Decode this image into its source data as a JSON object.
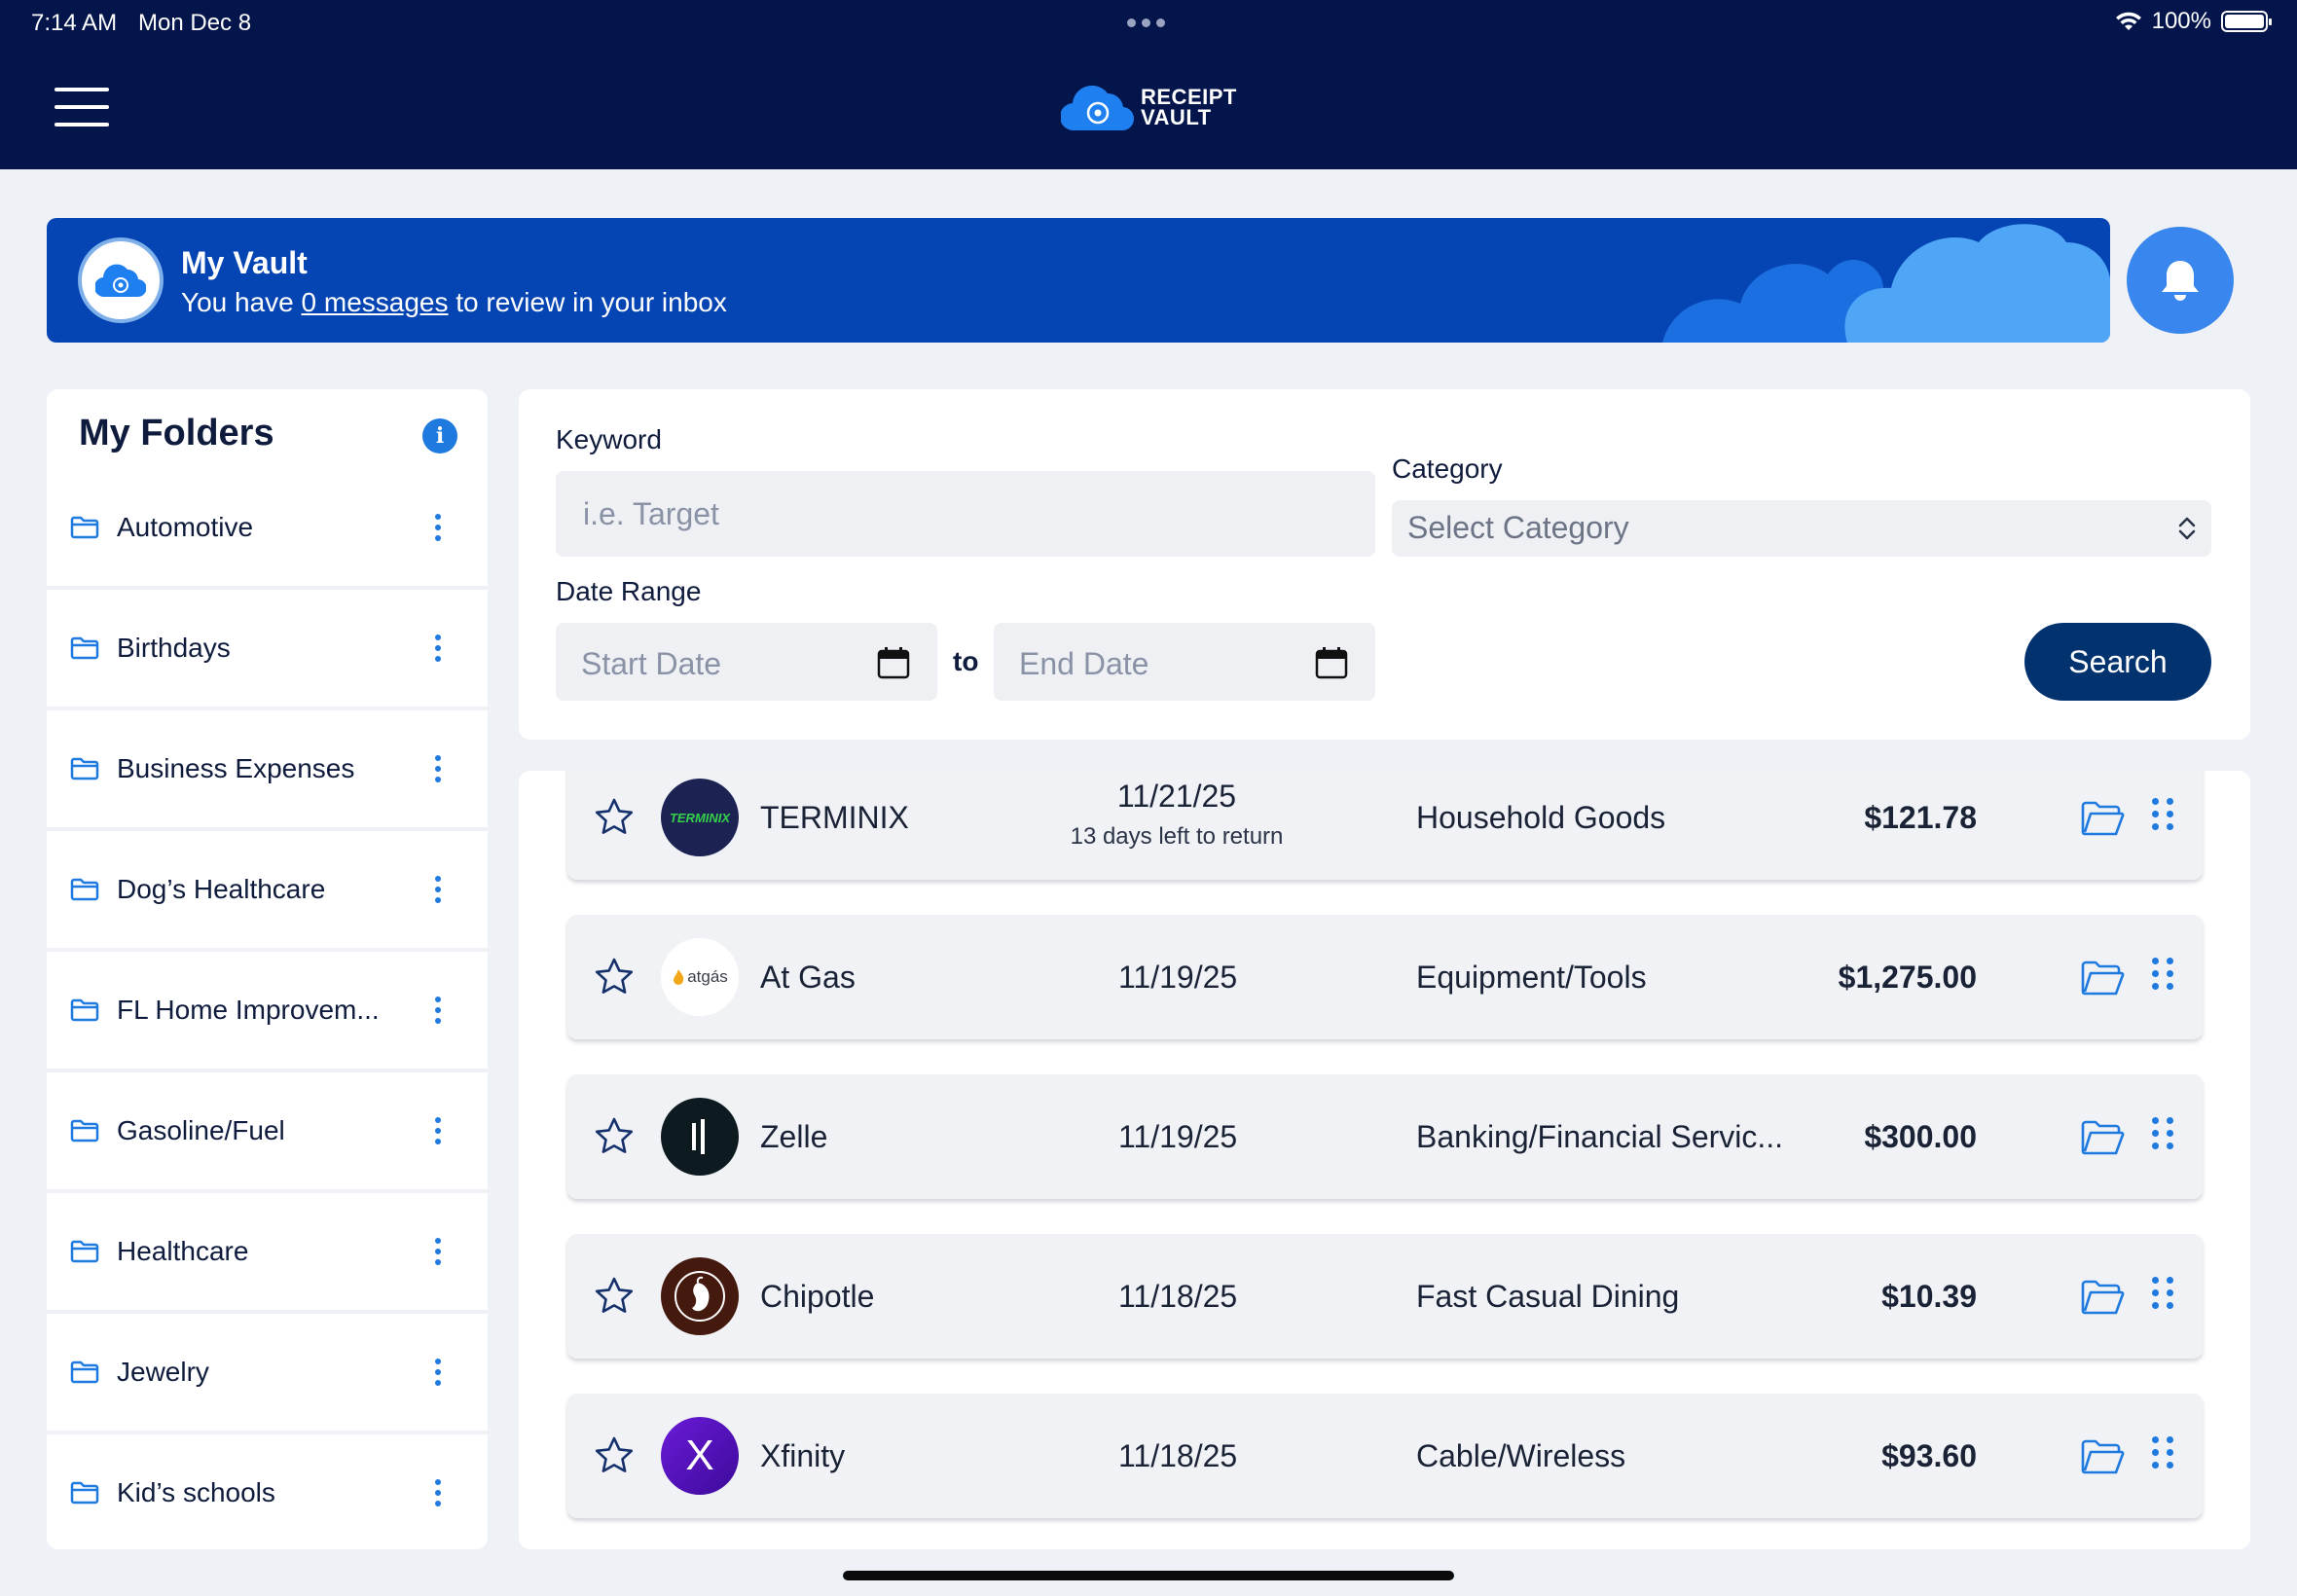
{
  "status_bar": {
    "time": "7:14 AM",
    "date": "Mon Dec 8",
    "battery": "100%",
    "battery_level": 1.0
  },
  "header": {
    "logo_line1": "RECEIPT",
    "logo_line2": "VAULT",
    "menu_icon": "hamburger-icon"
  },
  "vault": {
    "title": "My Vault",
    "msg_prefix": "You have ",
    "msg_link": "0 messages",
    "msg_suffix": " to review in your inbox"
  },
  "folders": {
    "title": "My Folders",
    "info_icon": "info-icon",
    "items": [
      {
        "label": "Automotive"
      },
      {
        "label": "Birthdays"
      },
      {
        "label": "Business Expenses"
      },
      {
        "label": "Dog’s Healthcare"
      },
      {
        "label": "FL Home Improvem..."
      },
      {
        "label": "Gasoline/Fuel"
      },
      {
        "label": "Healthcare"
      },
      {
        "label": "Jewelry"
      },
      {
        "label": "Kid’s schools"
      }
    ]
  },
  "search": {
    "keyword_label": "Keyword",
    "keyword_placeholder": "i.e. Target",
    "keyword_value": "",
    "category_label": "Category",
    "category_value": "Select Category",
    "date_range_label": "Date Range",
    "start_date": "Start Date",
    "to_label": "to",
    "end_date": "End Date",
    "button": "Search"
  },
  "receipts": [
    {
      "merchant": "TERMINIX",
      "logo_text": "TERMINIX",
      "date": "11/21/25",
      "note": "13 days left to return",
      "category": "Household Goods",
      "amount": "$121.78"
    },
    {
      "merchant": "At Gas",
      "logo_text": "atgás",
      "date": "11/19/25",
      "category": "Equipment/Tools",
      "amount": "$1,275.00"
    },
    {
      "merchant": "Zelle",
      "date": "11/19/25",
      "category": "Banking/Financial Servic...",
      "amount": "$300.00"
    },
    {
      "merchant": "Chipotle",
      "date": "11/18/25",
      "category": "Fast Casual Dining",
      "amount": "$10.39"
    },
    {
      "merchant": "Xfinity",
      "logo_text": "X",
      "date": "11/18/25",
      "category": "Cable/Wireless",
      "amount": "$93.60"
    }
  ],
  "colors": {
    "header_bg": "#03154b",
    "banner_bg": "#0545b3",
    "accent": "#1f7ae0",
    "button_bg": "#03336f"
  }
}
